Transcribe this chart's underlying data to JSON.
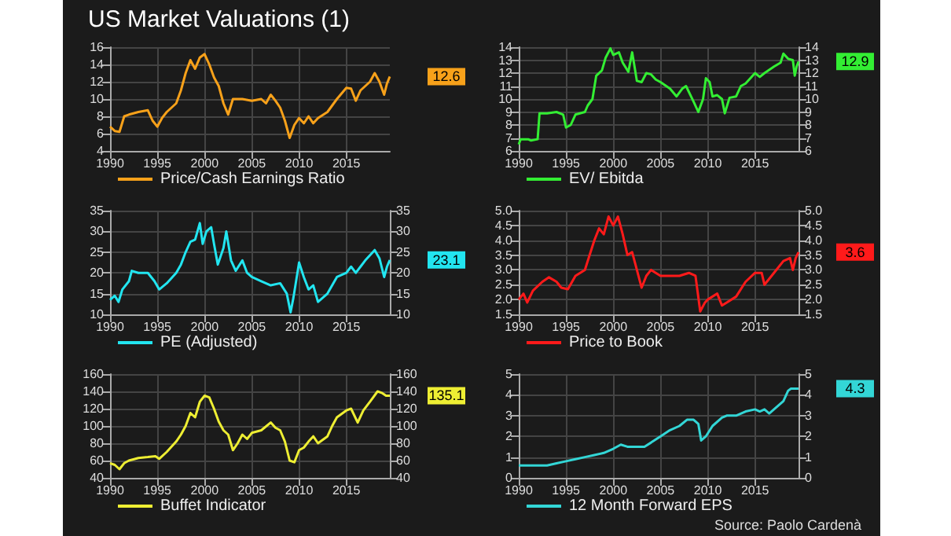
{
  "chart_data": [
    {
      "type": "line",
      "title": "US Market Valuations (1)",
      "x": [
        1990,
        1990.5,
        1991,
        1991.5,
        1992,
        1993,
        1994,
        1994.5,
        1995,
        1995.5,
        1996,
        1997,
        1997.5,
        1998,
        1998.5,
        1999,
        1999.5,
        2000,
        2000.5,
        2001,
        2001.5,
        2002,
        2002.5,
        2003,
        2004,
        2005,
        2006,
        2006.5,
        2007,
        2007.5,
        2008,
        2008.5,
        2009,
        2009.5,
        2010,
        2010.5,
        2011,
        2011.5,
        2012,
        2013,
        2014,
        2015,
        2015.5,
        2016,
        2016.5,
        2017,
        2017.5,
        2018,
        2018.5,
        2019,
        2019.3,
        2019.6
      ],
      "series": [
        {
          "name": "Price/Cash Earnings Ratio",
          "color": "#f7a11a",
          "values": [
            6.8,
            6.3,
            6.2,
            8,
            8.2,
            8.5,
            8.7,
            7.5,
            6.8,
            7.8,
            8.5,
            9.5,
            11,
            13,
            14.5,
            13.5,
            14.8,
            15.2,
            14,
            12.5,
            11.5,
            9.5,
            8.2,
            10,
            10,
            9.8,
            10,
            9.5,
            10.5,
            9.8,
            9,
            7.5,
            5.5,
            7,
            7.8,
            7.2,
            8,
            7.2,
            7.8,
            8.5,
            10,
            11.3,
            11.2,
            9.8,
            11,
            11.5,
            12,
            13,
            12,
            10.5,
            11.8,
            12.6
          ]
        }
      ],
      "annotations": [
        "12.6"
      ],
      "xlim": [
        1990,
        2019.6
      ],
      "xticks": [
        1990,
        1995,
        2000,
        2005,
        2010,
        2015
      ],
      "ylim": [
        4,
        16
      ],
      "yticks": [
        4,
        6,
        8,
        10,
        12,
        14,
        16
      ],
      "grid": true,
      "legend": "bottom"
    },
    {
      "type": "line",
      "x": [
        1990,
        1990.2,
        1991,
        1991.3,
        1992,
        1992.2,
        1993,
        1994,
        1994.7,
        1995,
        1995.5,
        1996,
        1997,
        1997.3,
        1997.8,
        1998.2,
        1998.8,
        1999.2,
        1999.7,
        2000,
        2000.6,
        2001,
        2001.6,
        2002,
        2002.5,
        2003,
        2003.5,
        2004,
        2004.5,
        2005,
        2006,
        2006.7,
        2007.3,
        2007.7,
        2008.5,
        2009,
        2009.5,
        2009.8,
        2010.2,
        2010.5,
        2011,
        2011.5,
        2011.8,
        2012.3,
        2013,
        2013.5,
        2014,
        2015,
        2015.5,
        2016,
        2017,
        2017.7,
        2018,
        2018.5,
        2019,
        2019.2,
        2019.4,
        2019.6
      ],
      "series": [
        {
          "name": "EV/ Ebitda",
          "color": "#33ee33",
          "values": [
            6.5,
            6.9,
            6.9,
            6.8,
            6.9,
            8.9,
            8.9,
            9,
            8.8,
            7.8,
            8,
            8.8,
            9,
            9.5,
            10,
            11.8,
            12.2,
            13.2,
            13.9,
            13.4,
            13.6,
            12.8,
            12.1,
            13.6,
            11.4,
            11.3,
            12,
            11.9,
            11.5,
            11.3,
            10.8,
            10.2,
            10.8,
            11,
            9.8,
            9,
            10,
            11.6,
            11.3,
            10.2,
            10.3,
            10,
            8.9,
            10.1,
            10.2,
            11,
            11.2,
            12,
            11.7,
            12,
            12.5,
            12.8,
            13.5,
            13.1,
            13,
            11.8,
            12.5,
            12.9
          ]
        }
      ],
      "annotations": [
        "12.9"
      ],
      "xlim": [
        1990,
        2019.6
      ],
      "xticks": [
        1990,
        1995,
        2000,
        2005,
        2010,
        2015
      ],
      "ylim": [
        6,
        14
      ],
      "yticks": [
        6,
        7,
        8,
        9,
        10,
        11,
        12,
        13,
        14
      ],
      "y2lim": [
        6,
        14
      ],
      "y2ticks": [
        6,
        7,
        8,
        9,
        10,
        11,
        12,
        13,
        14
      ],
      "grid": true,
      "legend": "bottom"
    },
    {
      "type": "line",
      "x": [
        1990,
        1990.5,
        1990.9,
        1991.3,
        1992,
        1992.3,
        1993,
        1994,
        1994.7,
        1995.2,
        1996,
        1997,
        1997.5,
        1998,
        1998.5,
        1999,
        1999.5,
        1999.8,
        2000.2,
        2000.7,
        2001,
        2001.4,
        2002,
        2002.3,
        2002.8,
        2003.3,
        2004,
        2004.5,
        2005,
        2006,
        2007,
        2008,
        2008.7,
        2009.1,
        2009.4,
        2010,
        2010.5,
        2011,
        2011.5,
        2012,
        2013,
        2014,
        2015,
        2015.5,
        2016,
        2016.5,
        2017,
        2018,
        2018.5,
        2019,
        2019.3,
        2019.6
      ],
      "series": [
        {
          "name": "PE (Adjusted)",
          "color": "#22e5f0",
          "values": [
            13.5,
            14.5,
            13,
            16,
            18,
            20.5,
            20,
            20,
            18,
            16,
            17.5,
            20,
            22,
            25,
            27.5,
            28,
            32,
            27,
            30,
            31,
            27,
            22,
            26,
            30,
            23,
            20.5,
            23,
            20,
            19,
            18,
            17,
            17.5,
            15,
            10.5,
            14,
            22.5,
            19,
            16,
            17,
            13,
            15,
            19,
            20,
            21.5,
            20,
            21.5,
            23,
            25.5,
            23.5,
            19,
            21.5,
            23.1
          ]
        }
      ],
      "annotations": [
        "23.1"
      ],
      "xlim": [
        1990,
        2019.6
      ],
      "xticks": [
        1990,
        1995,
        2000,
        2005,
        2010,
        2015
      ],
      "ylim": [
        10,
        35
      ],
      "yticks": [
        10,
        15,
        20,
        25,
        30,
        35
      ],
      "y2lim": [
        10,
        35
      ],
      "y2ticks": [
        10,
        15,
        20,
        25,
        30,
        35
      ],
      "grid": true,
      "legend": "bottom"
    },
    {
      "type": "line",
      "x": [
        1990,
        1990.5,
        1990.9,
        1991.5,
        1992.5,
        1993.2,
        1994,
        1994.5,
        1995.2,
        1996,
        1997,
        1997.5,
        1998,
        1998.5,
        1999,
        1999.5,
        2000,
        2000.5,
        2001,
        2001.5,
        2002,
        2002.5,
        2003,
        2003.5,
        2004,
        2005,
        2006,
        2007,
        2008,
        2008.7,
        2009.2,
        2009.7,
        2010,
        2011,
        2011.5,
        2012,
        2013,
        2014,
        2015,
        2015.7,
        2016,
        2017,
        2018,
        2018.7,
        2019,
        2019.3,
        2019.6
      ],
      "series": [
        {
          "name": "Price to Book",
          "color": "#ff1a1a",
          "values": [
            2.0,
            2.2,
            1.9,
            2.3,
            2.6,
            2.75,
            2.6,
            2.4,
            2.35,
            2.8,
            3.0,
            3.5,
            4.0,
            4.4,
            4.2,
            4.8,
            4.5,
            4.8,
            4.2,
            3.5,
            3.6,
            3.0,
            2.4,
            2.8,
            3.0,
            2.8,
            2.8,
            2.8,
            2.9,
            2.8,
            1.6,
            1.9,
            2.0,
            2.2,
            1.8,
            1.9,
            2.1,
            2.6,
            2.9,
            2.9,
            2.5,
            2.9,
            3.3,
            3.4,
            3.0,
            3.4,
            3.6
          ]
        }
      ],
      "annotations": [
        "3.6"
      ],
      "xlim": [
        1990,
        2019.6
      ],
      "xticks": [
        1990,
        1995,
        2000,
        2005,
        2010,
        2015
      ],
      "ylim": [
        1.5,
        5
      ],
      "yticks": [
        {
          "value": 1.5,
          "label": "1.5"
        },
        {
          "value": 2,
          "label": "2.0"
        },
        {
          "value": 2.5,
          "label": "2.5"
        },
        {
          "value": 3,
          "label": "3.0"
        },
        {
          "value": 3.5,
          "label": "3.5"
        },
        {
          "value": 4,
          "label": "4.0"
        },
        {
          "value": 4.5,
          "label": "4.5"
        },
        {
          "value": 5,
          "label": "5.0"
        }
      ],
      "y2lim": [
        1.5,
        5
      ],
      "y2ticks": [
        {
          "value": 1.5,
          "label": "1.5"
        },
        {
          "value": 2,
          "label": "2.0"
        },
        {
          "value": 2.5,
          "label": "2.5"
        },
        {
          "value": 3,
          "label": "3.0"
        },
        {
          "value": 3.5,
          "label": "3.5"
        },
        {
          "value": 4,
          "label": "4.0"
        },
        {
          "value": 4.5,
          "label": "4.5"
        },
        {
          "value": 5,
          "label": "5.0"
        }
      ],
      "grid": true,
      "legend": "bottom"
    },
    {
      "type": "line",
      "x": [
        1990,
        1990.5,
        1991,
        1991.5,
        1992,
        1993,
        1994,
        1994.8,
        1995.2,
        1996,
        1997,
        1997.5,
        1998,
        1998.5,
        1999,
        1999.5,
        2000,
        2000.5,
        2001,
        2001.5,
        2002,
        2002.5,
        2003,
        2003.5,
        2004,
        2004.5,
        2005,
        2006,
        2007,
        2007.5,
        2008,
        2008.5,
        2009,
        2009.5,
        2010,
        2010.5,
        2011,
        2011.5,
        2012,
        2013,
        2013.5,
        2014,
        2015,
        2015.5,
        2016.2,
        2016.8,
        2017.5,
        2018.3,
        2018.8,
        2019.2,
        2019.6
      ],
      "series": [
        {
          "name": "Buffet Indicator",
          "color": "#eeee33",
          "values": [
            57,
            55,
            50,
            57,
            60,
            63,
            64,
            65,
            62,
            70,
            82,
            90,
            100,
            115,
            110,
            128,
            135,
            133,
            120,
            105,
            95,
            90,
            72,
            80,
            90,
            85,
            92,
            95,
            104,
            98,
            95,
            82,
            60,
            58,
            72,
            75,
            82,
            88,
            80,
            88,
            100,
            110,
            118,
            120,
            104,
            118,
            128,
            140,
            138,
            135,
            135.1
          ]
        }
      ],
      "annotations": [
        "135.1"
      ],
      "xlim": [
        1990,
        2019.6
      ],
      "xticks": [
        1990,
        1995,
        2000,
        2005,
        2010,
        2015
      ],
      "ylim": [
        40,
        160
      ],
      "yticks": [
        40,
        60,
        80,
        100,
        120,
        140,
        160
      ],
      "y2lim": [
        40,
        160
      ],
      "y2ticks": [
        40,
        60,
        80,
        100,
        120,
        140,
        160
      ],
      "grid": true,
      "legend": "bottom"
    },
    {
      "type": "line",
      "x": [
        1990,
        1992,
        1993,
        1994,
        1995,
        1996,
        1997,
        1998,
        1999,
        2000,
        2000.8,
        2001.5,
        2002,
        2002.5,
        2003.3,
        2004,
        2005,
        2006,
        2007,
        2007.8,
        2008.5,
        2009,
        2009.3,
        2009.8,
        2010.5,
        2011.5,
        2012,
        2013,
        2014,
        2015,
        2015.5,
        2016,
        2016.5,
        2017,
        2018,
        2018.5,
        2018.8,
        2019.2,
        2019.6
      ],
      "series": [
        {
          "name": "12 Month Forward EPS",
          "color": "#33d6d6",
          "values": [
            0.6,
            0.6,
            0.6,
            0.7,
            0.8,
            0.9,
            1.0,
            1.1,
            1.2,
            1.4,
            1.6,
            1.5,
            1.5,
            1.5,
            1.5,
            1.7,
            2.0,
            2.3,
            2.5,
            2.8,
            2.8,
            2.6,
            1.8,
            2.0,
            2.5,
            2.9,
            3.0,
            3.0,
            3.2,
            3.3,
            3.2,
            3.3,
            3.1,
            3.3,
            3.7,
            4.2,
            4.3,
            4.3,
            4.3
          ]
        }
      ],
      "annotations": [
        "4.3",
        "Source: Paolo Cardenà"
      ],
      "xlim": [
        1990,
        2019.6
      ],
      "xticks": [
        1990,
        1995,
        2000,
        2005,
        2010,
        2015
      ],
      "ylim": [
        0,
        5
      ],
      "yticks": [
        0,
        1,
        2,
        3,
        4,
        5
      ],
      "y2lim": [
        0,
        5
      ],
      "y2ticks": [
        0,
        1,
        2,
        3,
        4,
        5
      ],
      "grid": true,
      "legend": "bottom"
    }
  ]
}
